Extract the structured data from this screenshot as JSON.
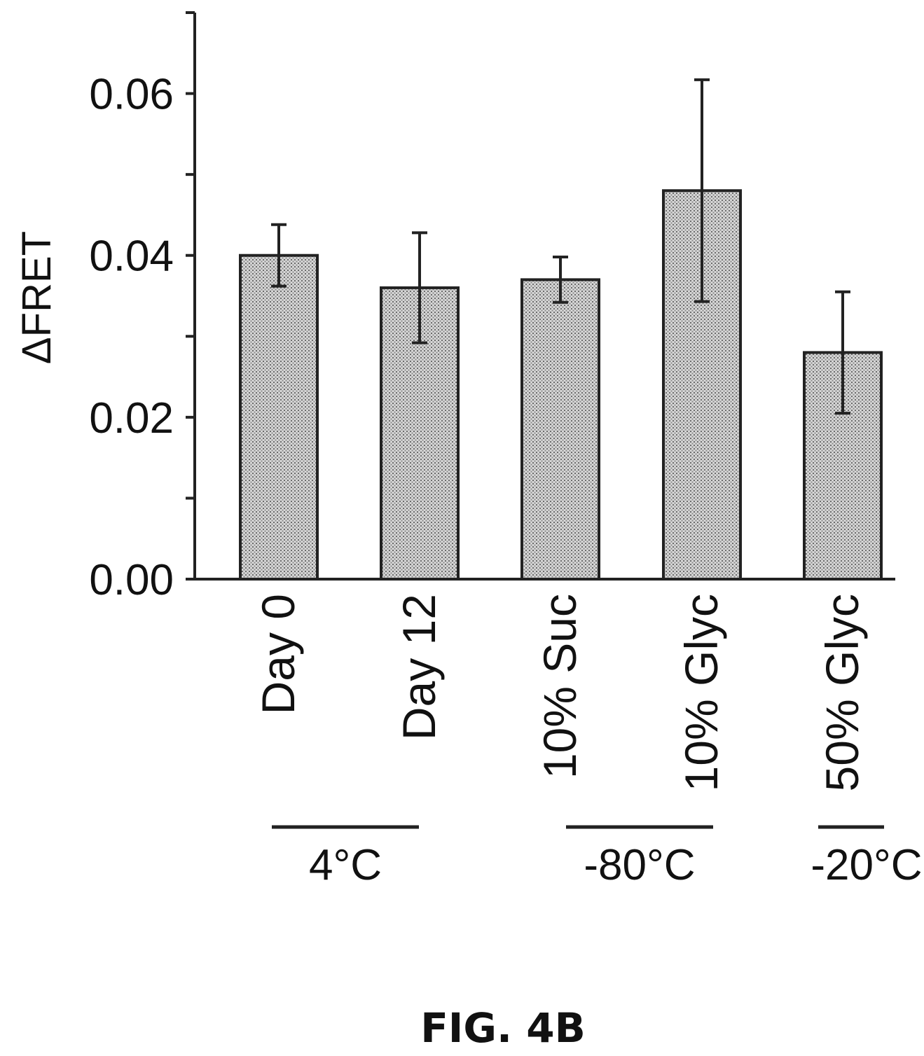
{
  "chart_data": {
    "type": "bar",
    "title": "",
    "xlabel": "",
    "ylabel": "ΔFRET",
    "ylim": [
      0,
      0.07
    ],
    "yticks": [
      "0.00",
      "0.02",
      "0.04",
      "0.06"
    ],
    "grid": false,
    "categories": [
      "Day 0",
      "Day 12",
      "10% Suc",
      "10% Glyc",
      "50% Glyc"
    ],
    "values": [
      0.04,
      0.036,
      0.037,
      0.048,
      0.028
    ],
    "error": [
      0.0038,
      0.0068,
      0.0028,
      0.0137,
      0.0075
    ],
    "groups": [
      {
        "label": "4°C",
        "categories": [
          0,
          1
        ]
      },
      {
        "label": "-80°C",
        "categories": [
          2,
          3
        ]
      },
      {
        "label": "-20°C",
        "categories": [
          4
        ]
      }
    ],
    "bar_color": "#c8c8c8",
    "edge_color": "#222222"
  },
  "figure_label": "FIG. 4B"
}
